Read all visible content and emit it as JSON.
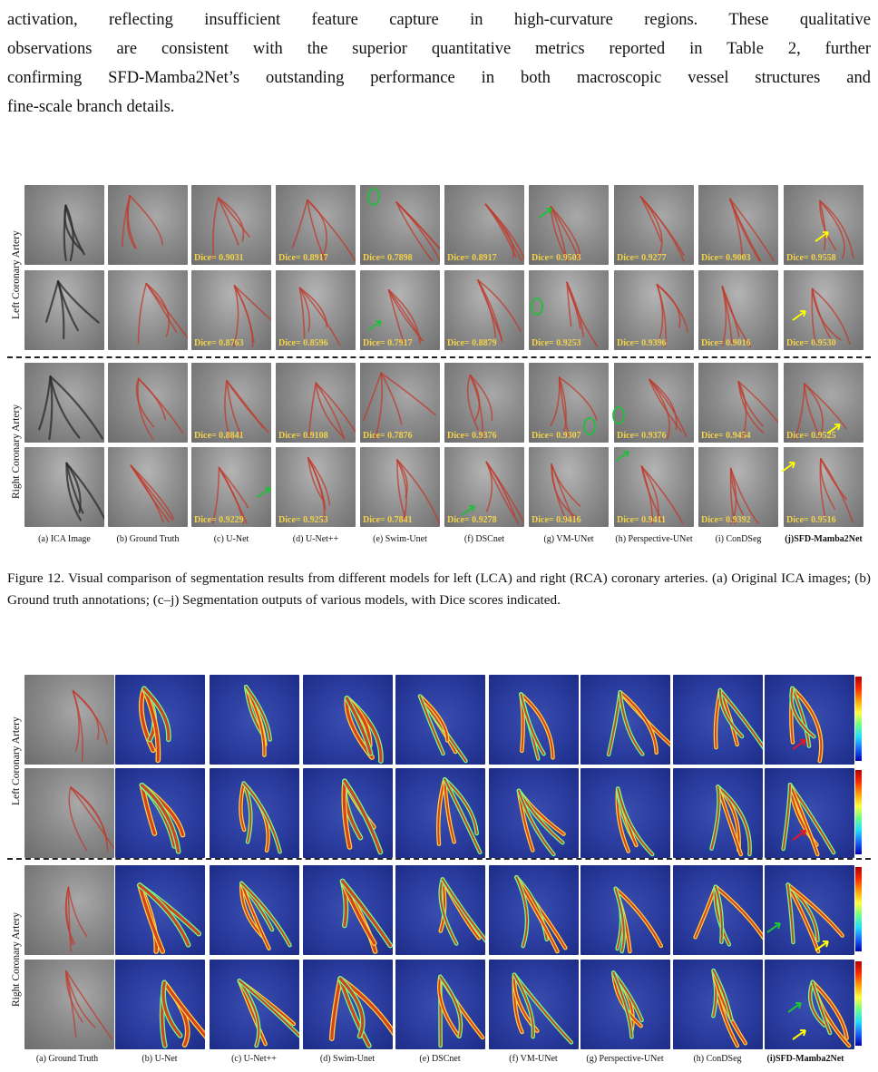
{
  "paragraph": {
    "lines": [
      "activation, reflecting insufficient feature capture in high-curvature regions. These qualitative",
      "observations are consistent with the superior quantitative metrics reported in Table 2, further",
      "confirming SFD-Mamba2Net’s outstanding performance in both macroscopic vessel structures and",
      "fine-scale branch details."
    ]
  },
  "figure12": {
    "row_labels": [
      "Left Coronary Artery",
      "Right Coronary Artery"
    ],
    "column_captions": [
      "(a) ICA Image",
      "(b) Ground Truth",
      "(c) U-Net",
      "(d) U-Net++",
      "(e) Swim-Unet",
      "(f) DSCnet",
      "(g) VM-UNet",
      "(h) Perspective-UNet",
      "(i) ConDSeg",
      "(j)SFD-Mamba2Net"
    ],
    "dice_rows": [
      [
        "Dice= 0.9031",
        "Dice= 0.8917",
        "Dice= 0.7898",
        "Dice= 0.8917",
        "Dice= 0.9503",
        "Dice= 0.9277",
        "Dice= 0.9003",
        "Dice= 0.9558"
      ],
      [
        "Dice= 0.8763",
        "Dice= 0.8596",
        "Dice= 0.7917",
        "Dice= 0.8879",
        "Dice= 0.9253",
        "Dice= 0.9396",
        "Dice= 0.9016",
        "Dice= 0.9530"
      ],
      [
        "Dice= 0.8841",
        "Dice= 0.9108",
        "Dice= 0.7876",
        "Dice= 0.9376",
        "Dice= 0.9307",
        "Dice= 0.9376",
        "Dice= 0.9454",
        "Dice= 0.9525"
      ],
      [
        "Dice= 0.9229",
        "Dice= 0.9253",
        "Dice= 0.7841",
        "Dice= 0.9278",
        "Dice= 0.9416",
        "Dice= 0.9411",
        "Dice= 0.9392",
        "Dice= 0.9516"
      ]
    ],
    "caption": "Figure 12. Visual comparison of segmentation results from different models for left (LCA) and right (RCA) coronary arteries. (a) Original ICA images; (b) Ground truth annotations; (c–j) Segmentation outputs of various models, with Dice scores indicated."
  },
  "figure13": {
    "row_labels": [
      "Left Coronary Artery",
      "Right Coronary Artery"
    ],
    "column_captions": [
      "(a) Ground Truth",
      "(b) U-Net",
      "(c) U-Net++",
      "(d) Swim-Unet",
      "(e) DSCnet",
      "(f) VM-UNet",
      "(g) Perspective-UNet",
      "(h) ConDSeg",
      "(i)SFD-Mamba2Net"
    ]
  },
  "colors": {
    "dice_text": "#f2d24a",
    "vessel_red": "#c0392b",
    "annotation_green": "#1fbf3a",
    "annotation_yellow": "#ffff00",
    "annotation_red": "#e0182a"
  }
}
